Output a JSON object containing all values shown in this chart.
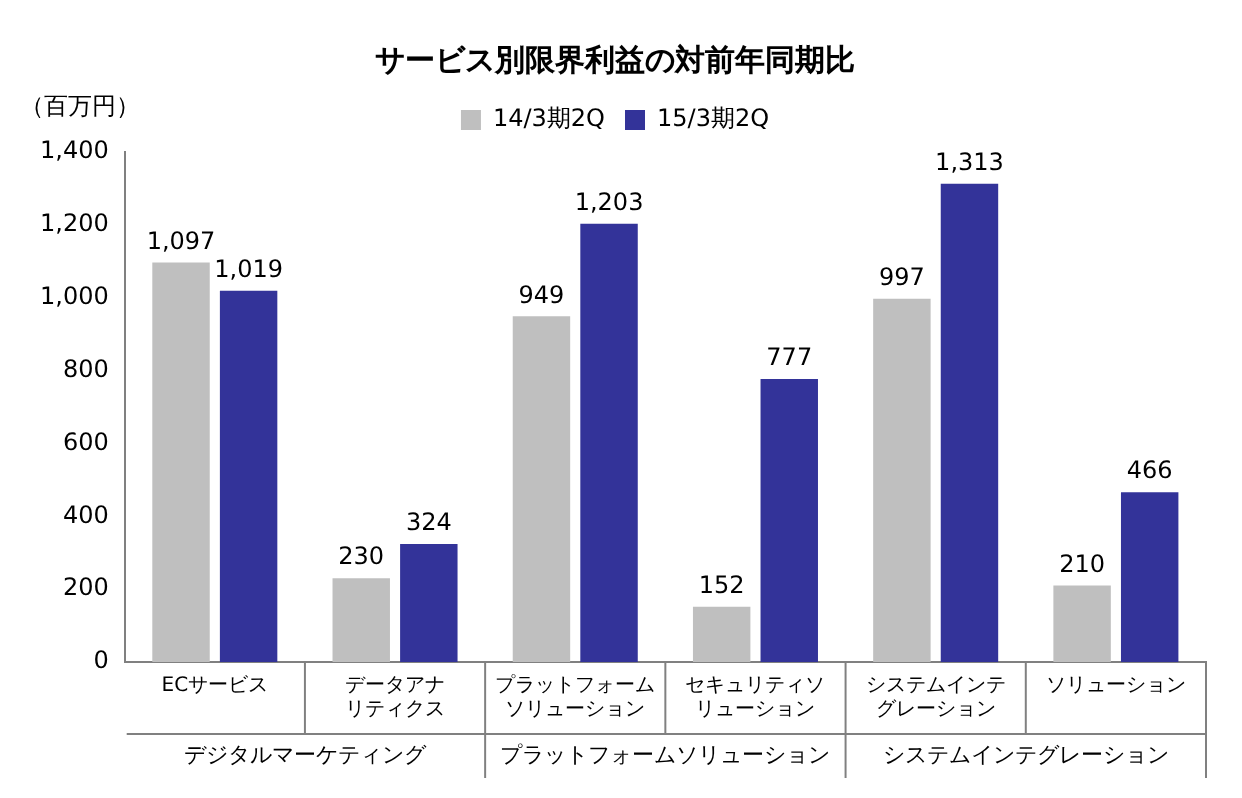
{
  "chart_data": {
    "type": "bar",
    "title": "サービス別限界利益の対前年同期比",
    "ylabel": "（百万円）",
    "categories": [
      "ECサービス",
      "データアナリティクス",
      "プラットフォームソリューション",
      "セキュリティソリューション",
      "システムインテグレーション",
      "ソリューション"
    ],
    "series": [
      {
        "name": "14/3期2Q",
        "color": "#bfbfbf",
        "values": [
          1097,
          230,
          949,
          152,
          997,
          210
        ],
        "value_labels": [
          "1,097",
          "230",
          "949",
          "152",
          "997",
          "210"
        ]
      },
      {
        "name": "15/3期2Q",
        "color": "#333399",
        "values": [
          1019,
          324,
          1203,
          777,
          1313,
          466
        ],
        "value_labels": [
          "1,019",
          "324",
          "1,203",
          "777",
          "1,313",
          "466"
        ]
      }
    ],
    "ylim": [
      0,
      1400
    ],
    "yticks": [
      0,
      200,
      400,
      600,
      800,
      {
        "value": 1000,
        "label": "1,000"
      },
      {
        "value": 1200,
        "label": "1,200"
      },
      {
        "value": 1400,
        "label": "1,400"
      }
    ],
    "grid": false,
    "legend": "top",
    "annotations": [
      "デジタルマーケティング",
      "プラットフォームソリューション",
      "システムインテグレーション"
    ]
  }
}
